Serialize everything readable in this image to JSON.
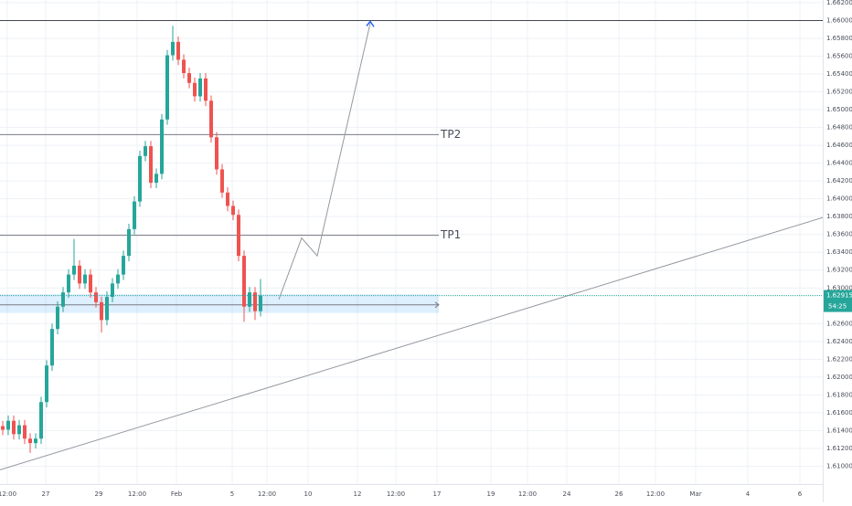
{
  "chart_data": {
    "type": "candlestick",
    "up_color": "#26a69a",
    "down_color": "#ef5350",
    "grid": true,
    "grid_color": "#eef1f6",
    "x": [
      0,
      1,
      2,
      3,
      4,
      5,
      6,
      7,
      8,
      9,
      10,
      11,
      12,
      13,
      14,
      15,
      16,
      17,
      18,
      19,
      20,
      21,
      22,
      23,
      24,
      25,
      26,
      27,
      28,
      29,
      30,
      31,
      32,
      33,
      34,
      35,
      36,
      37,
      38,
      39,
      40,
      41,
      42,
      43,
      44,
      45,
      46,
      47
    ],
    "open": [
      1.6145,
      1.6141,
      1.6151,
      1.6136,
      1.6146,
      1.6131,
      1.6126,
      1.6131,
      1.6172,
      1.6213,
      1.6254,
      1.6279,
      1.6295,
      1.6315,
      1.6325,
      1.6305,
      1.6315,
      1.6295,
      1.6284,
      1.6264,
      1.629,
      1.6305,
      1.6315,
      1.6336,
      1.6366,
      1.6397,
      1.6448,
      1.6459,
      1.6418,
      1.6428,
      1.6489,
      1.6561,
      1.6576,
      1.6556,
      1.6541,
      1.653,
      1.6515,
      1.6535,
      1.651,
      1.6469,
      1.6433,
      1.6407,
      1.6392,
      1.6382,
      1.6336,
      1.6279,
      1.6295,
      1.6274
    ],
    "high": [
      1.6151,
      1.6157,
      1.6157,
      1.6152,
      1.6152,
      1.6137,
      1.6137,
      1.6178,
      1.6219,
      1.626,
      1.6285,
      1.6301,
      1.6321,
      1.6355,
      1.6331,
      1.6321,
      1.6321,
      1.6301,
      1.629,
      1.6296,
      1.6311,
      1.6321,
      1.6342,
      1.6372,
      1.6403,
      1.6454,
      1.6465,
      1.6465,
      1.6434,
      1.6495,
      1.6567,
      1.6594,
      1.6582,
      1.6562,
      1.6547,
      1.6536,
      1.6541,
      1.6541,
      1.6516,
      1.6475,
      1.6439,
      1.6413,
      1.6398,
      1.6388,
      1.6342,
      1.6301,
      1.6301,
      1.631
    ],
    "low": [
      1.6135,
      1.6135,
      1.613,
      1.613,
      1.6125,
      1.6115,
      1.612,
      1.6125,
      1.6166,
      1.6207,
      1.6248,
      1.6273,
      1.6289,
      1.6309,
      1.6299,
      1.6299,
      1.6289,
      1.6278,
      1.625,
      1.6258,
      1.6284,
      1.6299,
      1.6309,
      1.633,
      1.636,
      1.6391,
      1.6442,
      1.6412,
      1.6412,
      1.6422,
      1.6483,
      1.6555,
      1.655,
      1.6535,
      1.6524,
      1.6509,
      1.6509,
      1.6504,
      1.6463,
      1.6427,
      1.6401,
      1.6386,
      1.6376,
      1.633,
      1.6262,
      1.6273,
      1.6264,
      1.6268
    ],
    "close": [
      1.6141,
      1.6151,
      1.6136,
      1.6146,
      1.6131,
      1.6126,
      1.6131,
      1.6172,
      1.6213,
      1.6254,
      1.6279,
      1.6295,
      1.6315,
      1.6325,
      1.6305,
      1.6315,
      1.6295,
      1.6284,
      1.6264,
      1.629,
      1.6305,
      1.6315,
      1.6336,
      1.6366,
      1.6397,
      1.6448,
      1.6459,
      1.6418,
      1.6428,
      1.6489,
      1.6561,
      1.6576,
      1.6556,
      1.6541,
      1.653,
      1.6515,
      1.6535,
      1.651,
      1.6469,
      1.6433,
      1.6407,
      1.6392,
      1.6382,
      1.6336,
      1.6279,
      1.6295,
      1.6274,
      1.62915
    ],
    "xlim": [
      -0.5,
      149.5
    ],
    "ylim": [
      1.608,
      1.6623
    ],
    "xticks": [
      {
        "value": 0.83,
        "label": "12:00"
      },
      {
        "value": 7.83,
        "label": "27"
      },
      {
        "value": 17.5,
        "label": "29"
      },
      {
        "value": 24.5,
        "label": "12:00"
      },
      {
        "value": 31.67,
        "label": "Feb"
      },
      {
        "value": 41.83,
        "label": "5"
      },
      {
        "value": 48.17,
        "label": "12:00"
      },
      {
        "value": 55.67,
        "label": "10"
      },
      {
        "value": 64.67,
        "label": "12"
      },
      {
        "value": 71.67,
        "label": "12:00"
      },
      {
        "value": 79.17,
        "label": "17"
      },
      {
        "value": 89,
        "label": "19"
      },
      {
        "value": 95.67,
        "label": "12:00"
      },
      {
        "value": 102.83,
        "label": "24"
      },
      {
        "value": 112.33,
        "label": "26"
      },
      {
        "value": 119,
        "label": "12:00"
      },
      {
        "value": 126.33,
        "label": "Mar"
      },
      {
        "value": 135.83,
        "label": "4"
      },
      {
        "value": 145.33,
        "label": "6"
      }
    ],
    "yticks": [
      {
        "value": 1.61,
        "label": "1.61000"
      },
      {
        "value": 1.612,
        "label": "1.61200"
      },
      {
        "value": 1.614,
        "label": "1.61400"
      },
      {
        "value": 1.616,
        "label": "1.61600"
      },
      {
        "value": 1.618,
        "label": "1.61800"
      },
      {
        "value": 1.62,
        "label": "1.62000"
      },
      {
        "value": 1.622,
        "label": "1.62200"
      },
      {
        "value": 1.624,
        "label": "1.62400"
      },
      {
        "value": 1.626,
        "label": "1.62600"
      },
      {
        "value": 1.63,
        "label": "1.63000"
      },
      {
        "value": 1.632,
        "label": "1.63200"
      },
      {
        "value": 1.634,
        "label": "1.63400"
      },
      {
        "value": 1.636,
        "label": "1.63600"
      },
      {
        "value": 1.638,
        "label": "1.63800"
      },
      {
        "value": 1.64,
        "label": "1.64000"
      },
      {
        "value": 1.642,
        "label": "1.64200"
      },
      {
        "value": 1.644,
        "label": "1.64400"
      },
      {
        "value": 1.646,
        "label": "1.64600"
      },
      {
        "value": 1.648,
        "label": "1.64800"
      },
      {
        "value": 1.65,
        "label": "1.65000"
      },
      {
        "value": 1.652,
        "label": "1.65200"
      },
      {
        "value": 1.654,
        "label": "1.65400"
      },
      {
        "value": 1.656,
        "label": "1.65600"
      },
      {
        "value": 1.658,
        "label": "1.65800"
      },
      {
        "value": 1.66,
        "label": "1.66000"
      },
      {
        "value": 1.662,
        "label": "1.66200"
      }
    ],
    "levels": [
      {
        "value": 1.66,
        "color": "#434651"
      },
      {
        "label": "TP2",
        "value": 1.6472,
        "color": "#787b86"
      },
      {
        "label": "TP1",
        "value": 1.6359,
        "color": "#787b86"
      }
    ],
    "level_end": 79.5,
    "zone": {
      "xlim": [
        -0.5,
        79.5
      ],
      "ylim": [
        1.6272,
        1.6293
      ],
      "arrow": 1.6281,
      "color": "#2196f3"
    },
    "trendline": {
      "x": [
        -0.5,
        149.5
      ],
      "y": [
        1.6096,
        1.6379
      ],
      "color": "#9598a1"
    },
    "projection": {
      "x": [
        50.33,
        54.5,
        57.33,
        67
      ],
      "y": [
        1.6287,
        1.6356,
        1.6336,
        1.6597
      ],
      "color": "#9598a1",
      "arrow_color": "#2962ff"
    },
    "last_price": 1.62915,
    "countdown": "54:25",
    "price_color": "#26a69a"
  }
}
